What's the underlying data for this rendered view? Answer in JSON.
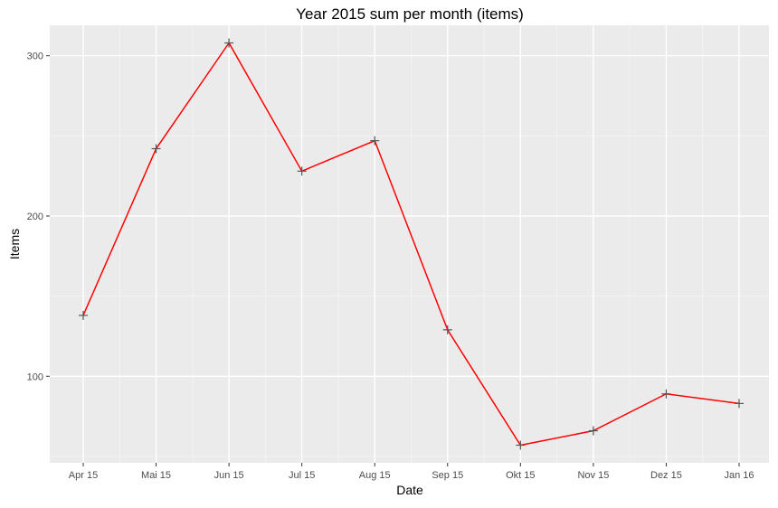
{
  "chart_data": {
    "type": "line",
    "title": "Year 2015 sum per month (items)",
    "xlabel": "Date",
    "ylabel": "Items",
    "x": [
      "Apr 15",
      "Mai 15",
      "Jun 15",
      "Jul 15",
      "Aug 15",
      "Sep 15",
      "Okt 15",
      "Nov 15",
      "Dez 15",
      "Jan 16"
    ],
    "series": [
      {
        "values": [
          138,
          242,
          308,
          228,
          247,
          129,
          57,
          66,
          89,
          83
        ]
      }
    ],
    "yticks": [
      100,
      200,
      300
    ],
    "ylim": [
      46,
      319
    ],
    "grid": true,
    "line_color": "#ff0000",
    "point_color": "#555555",
    "point_shape": "plus",
    "panel_background": "#ebebeb"
  }
}
